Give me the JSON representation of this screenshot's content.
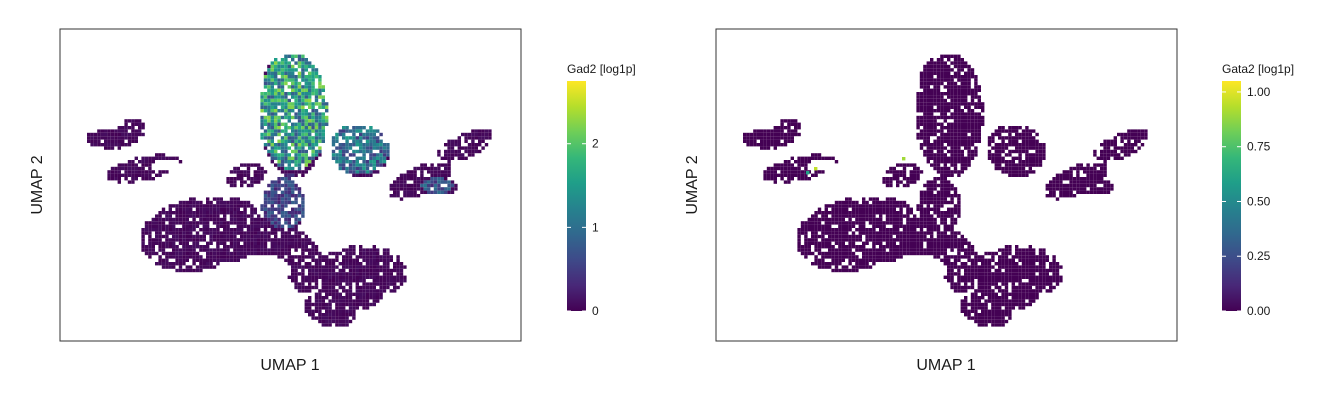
{
  "chart_data": [
    {
      "type": "hexbin-scatter",
      "xlabel": "UMAP 1",
      "ylabel": "UMAP 2",
      "legend": {
        "title": "Gad2 [log1p]",
        "placement": "right",
        "range": [
          0,
          2.75
        ],
        "ticks": [
          "0",
          "1",
          "2"
        ],
        "tick_values": [
          0,
          1,
          2
        ]
      },
      "colormap": "viridis",
      "high_expression_regions": [
        {
          "region": "top-lobe",
          "level": 1.9
        },
        {
          "region": "upper-right-bridge",
          "level": 1.3
        },
        {
          "region": "right-arm-tip",
          "level": 0.9
        },
        {
          "region": "central-column",
          "level": 0.7
        }
      ],
      "background_level": 0.1,
      "grid": false
    },
    {
      "type": "hexbin-scatter",
      "xlabel": "UMAP 1",
      "ylabel": "UMAP 2",
      "legend": {
        "title": "Gata2 [log1p]",
        "placement": "right",
        "range": [
          0,
          1.05
        ],
        "ticks": [
          "0.00",
          "0.25",
          "0.50",
          "0.75",
          "1.00"
        ],
        "tick_values": [
          0,
          0.25,
          0.5,
          0.75,
          1.0
        ]
      },
      "colormap": "viridis",
      "high_expression_regions": [],
      "sparse_high_points": [
        {
          "region": "left-bridge",
          "level": 0.95
        },
        {
          "region": "left-bridge",
          "level": 0.6
        },
        {
          "region": "central-upper",
          "level": 0.9
        }
      ],
      "background_level": 0.0,
      "grid": false
    }
  ],
  "colors": {
    "viridis": [
      "#440154",
      "#482878",
      "#3e4a89",
      "#31688e",
      "#26828e",
      "#1f9e89",
      "#35b779",
      "#6ece58",
      "#b5de2b",
      "#fde725"
    ],
    "frame": "#333333"
  }
}
